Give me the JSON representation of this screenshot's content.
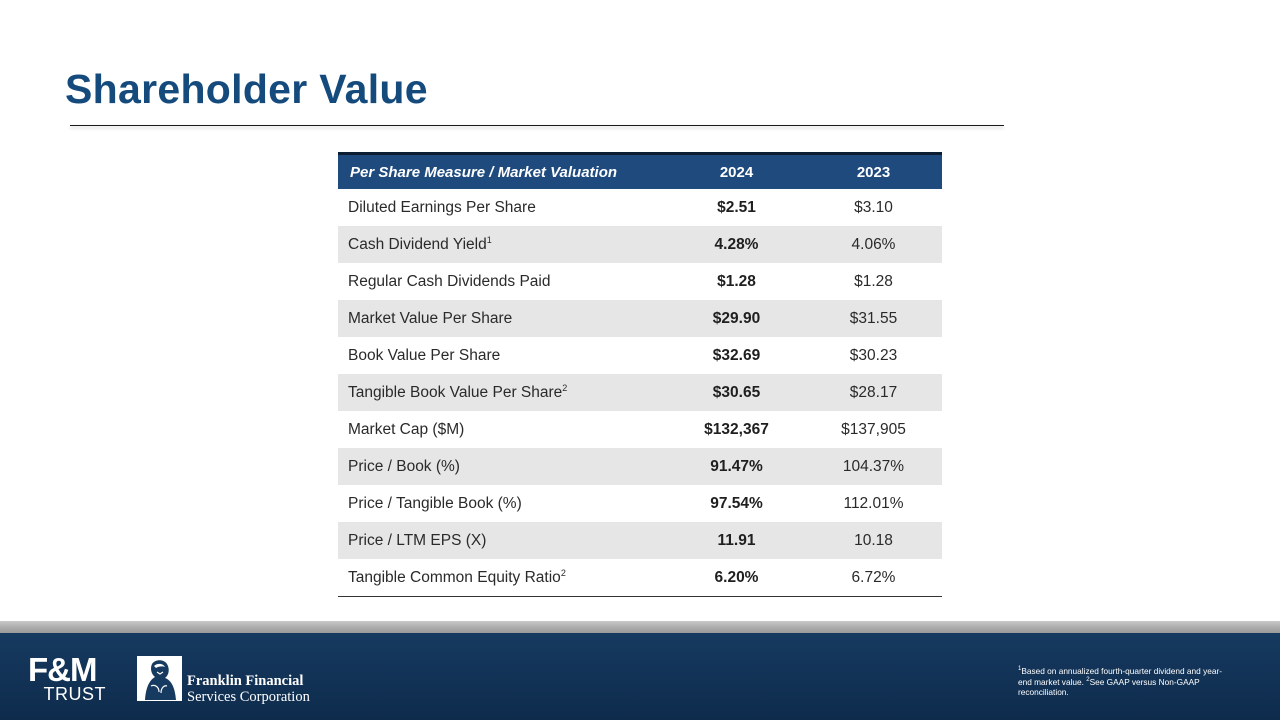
{
  "slide": {
    "title": "Shareholder Value"
  },
  "table": {
    "header": {
      "measure": "Per Share Measure / Market Valuation",
      "col1": "2024",
      "col2": "2023"
    },
    "rows": [
      {
        "label": "Diluted Earnings Per Share",
        "sup": "",
        "v2024": "$2.51",
        "v2023": "$3.10"
      },
      {
        "label": "Cash Dividend Yield",
        "sup": "1",
        "v2024": "4.28%",
        "v2023": "4.06%"
      },
      {
        "label": "Regular Cash Dividends Paid",
        "sup": "",
        "v2024": "$1.28",
        "v2023": "$1.28"
      },
      {
        "label": "Market Value Per Share",
        "sup": "",
        "v2024": "$29.90",
        "v2023": "$31.55"
      },
      {
        "label": "Book Value Per Share",
        "sup": "",
        "v2024": "$32.69",
        "v2023": "$30.23"
      },
      {
        "label": "Tangible Book Value Per Share",
        "sup": "2",
        "v2024": "$30.65",
        "v2023": "$28.17"
      },
      {
        "label": "Market Cap ($M)",
        "sup": "",
        "v2024": "$132,367",
        "v2023": "$137,905"
      },
      {
        "label": "Price / Book (%)",
        "sup": "",
        "v2024": "91.47%",
        "v2023": "104.37%"
      },
      {
        "label": "Price / Tangible Book (%)",
        "sup": "",
        "v2024": "97.54%",
        "v2023": "112.01%"
      },
      {
        "label": "Price / LTM EPS (X)",
        "sup": "",
        "v2024": "11.91",
        "v2023": "10.18"
      },
      {
        "label": "Tangible Common Equity Ratio",
        "sup": "2",
        "v2024": "6.20%",
        "v2023": "6.72%"
      }
    ]
  },
  "footer": {
    "fm_logo": {
      "mark": "F&M",
      "sub": "TRUST"
    },
    "ffsc": {
      "line1": "Franklin Financial",
      "line2": "Services Corporation"
    },
    "footnote": {
      "sup1": "1",
      "text1": "Based on annualized fourth-quarter dividend and year-end market value. ",
      "sup2": "2",
      "text2": "See GAAP versus Non-GAAP reconciliation."
    }
  },
  "colors": {
    "title": "#154a7d",
    "header_bg": "#1e4a7e",
    "footer_bg": "#163a60",
    "row_shade": "#e6e6e6"
  },
  "icons": {
    "ffsc_emblem": "franklin-portrait-emblem"
  }
}
